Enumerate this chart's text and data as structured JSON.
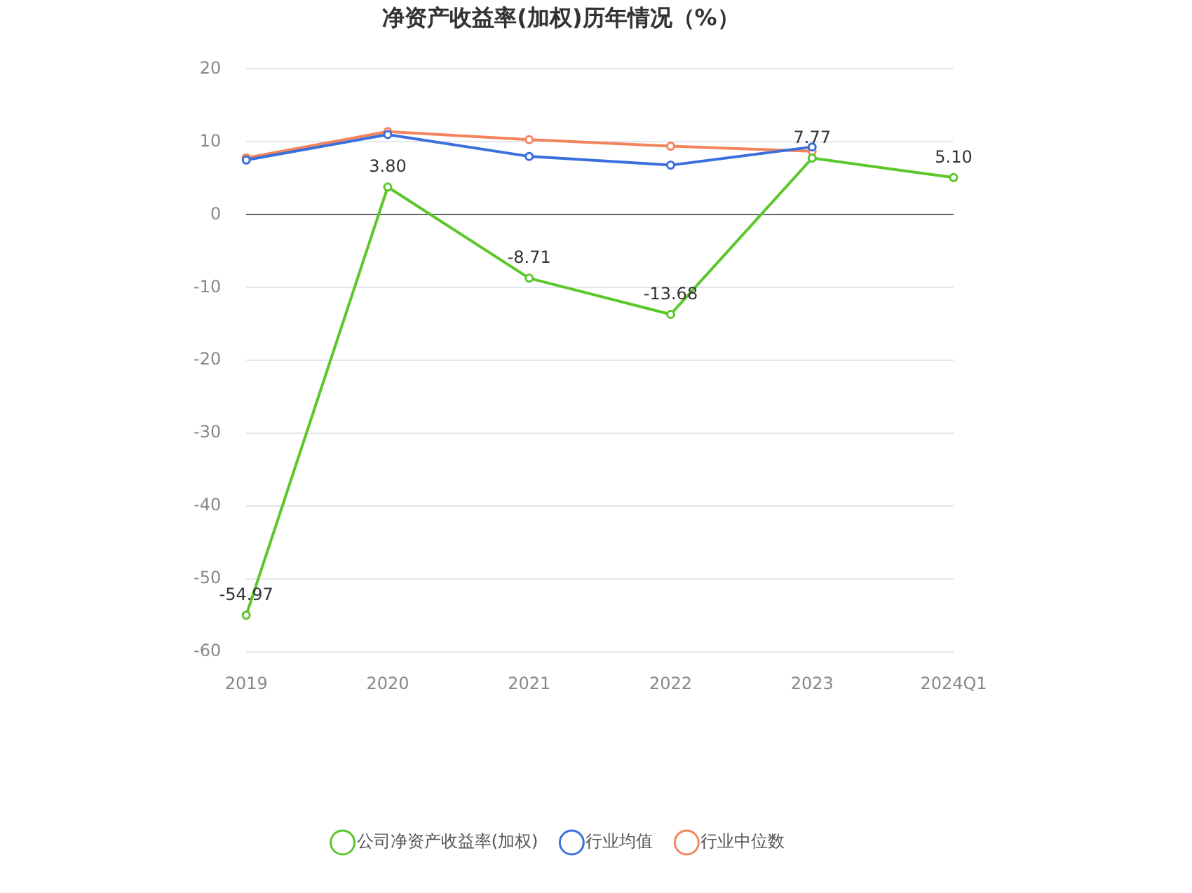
{
  "chart_data": {
    "type": "line",
    "title": "净资产收益率(加权)历年情况（%）",
    "categories": [
      "2019",
      "2020",
      "2021",
      "2022",
      "2023",
      "2024Q1"
    ],
    "series": [
      {
        "name": "公司净资产收益率(加权)",
        "color": "#5cc72b",
        "values": [
          -54.97,
          3.8,
          -8.71,
          -13.68,
          7.77,
          5.1
        ],
        "value_labels": [
          "-54.97",
          "3.80",
          "-8.71",
          "-13.68",
          "7.77",
          "5.10"
        ]
      },
      {
        "name": "行业均值",
        "color": "#3a6fdc",
        "values": [
          7.5,
          11.0,
          8.0,
          6.8,
          9.3,
          null
        ]
      },
      {
        "name": "行业中位数",
        "color": "#f3845c",
        "values": [
          7.8,
          11.4,
          10.3,
          9.4,
          8.7,
          null
        ]
      }
    ],
    "ylim": [
      -60,
      20
    ],
    "yticks": [
      -60,
      -50,
      -40,
      -30,
      -20,
      -10,
      0,
      10,
      20
    ],
    "grid": "y",
    "legend": "bottom",
    "marker": "circle",
    "line_style": "solid"
  }
}
